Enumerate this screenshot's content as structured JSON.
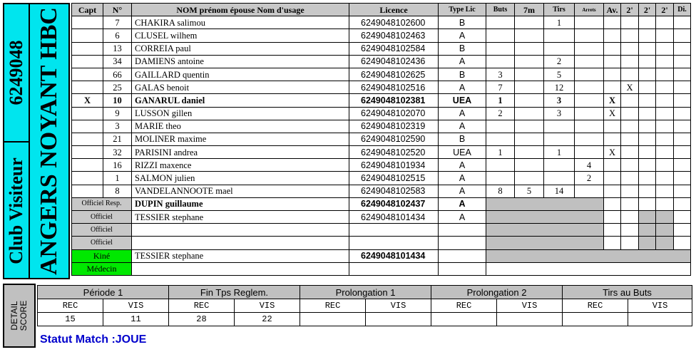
{
  "team": {
    "code": "6249048",
    "name": "ANGERS NOYANT HBC",
    "side_label": "Club Visiteur"
  },
  "headers": {
    "capt": "Capt",
    "num": "N°",
    "nom": "NOM prénom épouse Nom d'usage",
    "licence": "Licence",
    "type": "Type Lic",
    "buts": "Buts",
    "seven_m": "7m",
    "tirs": "Tirs",
    "arrets": "Arrets",
    "av": "Av.",
    "two_min_1": "2'",
    "two_min_2": "2'",
    "two_min_3": "2'",
    "di": "Di."
  },
  "players": [
    {
      "capt": "",
      "num": "7",
      "name": "CHAKIRA salimou",
      "licence": "6249048102600",
      "type": "B",
      "buts": "",
      "seven_m": "",
      "tirs": "1",
      "arrets": "",
      "av": "",
      "m1": "",
      "m2": "",
      "m3": "",
      "di": "",
      "bold": false
    },
    {
      "capt": "",
      "num": "6",
      "name": "CLUSEL wilhem",
      "licence": "6249048102463",
      "type": "A",
      "buts": "",
      "seven_m": "",
      "tirs": "",
      "arrets": "",
      "av": "",
      "m1": "",
      "m2": "",
      "m3": "",
      "di": "",
      "bold": false
    },
    {
      "capt": "",
      "num": "13",
      "name": "CORREIA paul",
      "licence": "6249048102584",
      "type": "B",
      "buts": "",
      "seven_m": "",
      "tirs": "",
      "arrets": "",
      "av": "",
      "m1": "",
      "m2": "",
      "m3": "",
      "di": "",
      "bold": false
    },
    {
      "capt": "",
      "num": "34",
      "name": "DAMIENS antoine",
      "licence": "6249048102436",
      "type": "A",
      "buts": "",
      "seven_m": "",
      "tirs": "2",
      "arrets": "",
      "av": "",
      "m1": "",
      "m2": "",
      "m3": "",
      "di": "",
      "bold": false
    },
    {
      "capt": "",
      "num": "66",
      "name": "GAILLARD quentin",
      "licence": "6249048102625",
      "type": "B",
      "buts": "3",
      "seven_m": "",
      "tirs": "5",
      "arrets": "",
      "av": "",
      "m1": "",
      "m2": "",
      "m3": "",
      "di": "",
      "bold": false
    },
    {
      "capt": "",
      "num": "25",
      "name": "GALAS benoit",
      "licence": "6249048102516",
      "type": "A",
      "buts": "7",
      "seven_m": "",
      "tirs": "12",
      "arrets": "",
      "av": "",
      "m1": "X",
      "m2": "",
      "m3": "",
      "di": "",
      "bold": false
    },
    {
      "capt": "X",
      "num": "10",
      "name": "GANARUL daniel",
      "licence": "6249048102381",
      "type": "UEA",
      "buts": "1",
      "seven_m": "",
      "tirs": "3",
      "arrets": "",
      "av": "X",
      "m1": "",
      "m2": "",
      "m3": "",
      "di": "",
      "bold": true
    },
    {
      "capt": "",
      "num": "9",
      "name": "LUSSON gillen",
      "licence": "6249048102070",
      "type": "A",
      "buts": "2",
      "seven_m": "",
      "tirs": "3",
      "arrets": "",
      "av": "X",
      "m1": "",
      "m2": "",
      "m3": "",
      "di": "",
      "bold": false
    },
    {
      "capt": "",
      "num": "3",
      "name": "MARIE theo",
      "licence": "6249048102319",
      "type": "A",
      "buts": "",
      "seven_m": "",
      "tirs": "",
      "arrets": "",
      "av": "",
      "m1": "",
      "m2": "",
      "m3": "",
      "di": "",
      "bold": false
    },
    {
      "capt": "",
      "num": "21",
      "name": "MOLINER maxime",
      "licence": "6249048102590",
      "type": "B",
      "buts": "",
      "seven_m": "",
      "tirs": "",
      "arrets": "",
      "av": "",
      "m1": "",
      "m2": "",
      "m3": "",
      "di": "",
      "bold": false
    },
    {
      "capt": "",
      "num": "32",
      "name": "PARISINI andrea",
      "licence": "6249048102520",
      "type": "UEA",
      "buts": "1",
      "seven_m": "",
      "tirs": "1",
      "arrets": "",
      "av": "X",
      "m1": "",
      "m2": "",
      "m3": "",
      "di": "",
      "bold": false
    },
    {
      "capt": "",
      "num": "16",
      "name": "RIZZI maxence",
      "licence": "6249048101934",
      "type": "A",
      "buts": "",
      "seven_m": "",
      "tirs": "",
      "arrets": "4",
      "av": "",
      "m1": "",
      "m2": "",
      "m3": "",
      "di": "",
      "bold": false
    },
    {
      "capt": "",
      "num": "1",
      "name": "SALMON julien",
      "licence": "6249048102515",
      "type": "A",
      "buts": "",
      "seven_m": "",
      "tirs": "",
      "arrets": "2",
      "av": "",
      "m1": "",
      "m2": "",
      "m3": "",
      "di": "",
      "bold": false
    },
    {
      "capt": "",
      "num": "8",
      "name": "VANDELANNOOTE mael",
      "licence": "6249048102583",
      "type": "A",
      "buts": "8",
      "seven_m": "5",
      "tirs": "14",
      "arrets": "",
      "av": "",
      "m1": "",
      "m2": "",
      "m3": "",
      "di": "",
      "bold": false
    }
  ],
  "officials": [
    {
      "role": "Officiel Resp.",
      "name": "DUPIN guillaume",
      "licence": "6249048102437",
      "type": "A",
      "bold": true
    },
    {
      "role": "Officiel",
      "name": "TESSIER stephane",
      "licence": "6249048101434",
      "type": "A",
      "bold": false
    },
    {
      "role": "Officiel",
      "name": "",
      "licence": "",
      "type": "",
      "bold": false
    },
    {
      "role": "Officiel",
      "name": "",
      "licence": "",
      "type": "",
      "bold": false
    }
  ],
  "staff": [
    {
      "role": "Kiné",
      "name": "TESSIER stephane",
      "licence": "6249048101434"
    },
    {
      "role": "Médecin",
      "name": "",
      "licence": ""
    }
  ],
  "score": {
    "label": "DETAIL SCORE",
    "periods": [
      "Période 1",
      "Fin Tps Reglem.",
      "Prolongation 1",
      "Prolongation 2",
      "Tirs au Buts"
    ],
    "rec_label": "REC",
    "vis_label": "VIS",
    "values": [
      [
        "15",
        "11"
      ],
      [
        "28",
        "22"
      ],
      [
        "",
        ""
      ],
      [
        "",
        ""
      ],
      [
        "",
        ""
      ]
    ]
  },
  "statut": "Statut Match :JOUE"
}
